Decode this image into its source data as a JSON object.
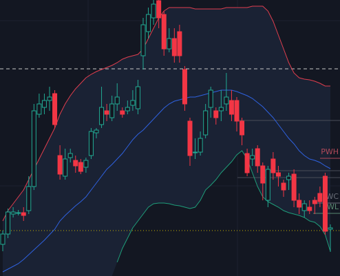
{
  "chart_data": {
    "type": "candlestick",
    "ylim": [
      0,
      401
    ],
    "up_color": "#22ab94",
    "down_color": "#f23645",
    "candles": [
      {
        "open": 46,
        "high": 66,
        "low": 36,
        "close": 61
      },
      {
        "open": 61,
        "high": 98,
        "low": 55,
        "close": 93
      },
      {
        "open": 90,
        "high": 100,
        "low": 85,
        "close": 93
      },
      {
        "open": 92,
        "high": 96,
        "low": 88,
        "close": 92
      },
      {
        "open": 92,
        "high": 100,
        "low": 80,
        "close": 88
      },
      {
        "open": 95,
        "high": 145,
        "low": 90,
        "close": 130
      },
      {
        "open": 130,
        "high": 250,
        "low": 125,
        "close": 240
      },
      {
        "open": 235,
        "high": 265,
        "low": 230,
        "close": 250
      },
      {
        "open": 245,
        "high": 265,
        "low": 235,
        "close": 255
      },
      {
        "open": 255,
        "high": 275,
        "low": 240,
        "close": 260
      },
      {
        "open": 265,
        "high": 270,
        "low": 215,
        "close": 220
      },
      {
        "open": 175,
        "high": 190,
        "low": 140,
        "close": 148
      },
      {
        "open": 145,
        "high": 185,
        "low": 140,
        "close": 170
      },
      {
        "open": 172,
        "high": 185,
        "low": 165,
        "close": 178
      },
      {
        "open": 168,
        "high": 175,
        "low": 150,
        "close": 160
      },
      {
        "open": 165,
        "high": 170,
        "low": 148,
        "close": 152
      },
      {
        "open": 158,
        "high": 172,
        "low": 150,
        "close": 168
      },
      {
        "open": 175,
        "high": 215,
        "low": 170,
        "close": 210
      },
      {
        "open": 208,
        "high": 215,
        "low": 200,
        "close": 212
      },
      {
        "open": 220,
        "high": 275,
        "low": 215,
        "close": 245
      },
      {
        "open": 240,
        "high": 250,
        "low": 225,
        "close": 235
      },
      {
        "open": 230,
        "high": 262,
        "low": 225,
        "close": 250
      },
      {
        "open": 250,
        "high": 280,
        "low": 240,
        "close": 260
      },
      {
        "open": 240,
        "high": 245,
        "low": 230,
        "close": 235
      },
      {
        "open": 240,
        "high": 255,
        "low": 235,
        "close": 245
      },
      {
        "open": 248,
        "high": 270,
        "low": 240,
        "close": 255
      },
      {
        "open": 243,
        "high": 285,
        "low": 235,
        "close": 275
      },
      {
        "open": 320,
        "high": 375,
        "low": 300,
        "close": 365
      },
      {
        "open": 355,
        "high": 390,
        "low": 345,
        "close": 380
      },
      {
        "open": 375,
        "high": 401,
        "low": 365,
        "close": 395
      },
      {
        "open": 400,
        "high": 401,
        "low": 360,
        "close": 375
      },
      {
        "open": 380,
        "high": 385,
        "low": 320,
        "close": 330
      },
      {
        "open": 330,
        "high": 360,
        "low": 325,
        "close": 345
      },
      {
        "open": 345,
        "high": 360,
        "low": 310,
        "close": 320
      },
      {
        "open": 355,
        "high": 365,
        "low": 310,
        "close": 320
      },
      {
        "open": 300,
        "high": 305,
        "low": 240,
        "close": 250
      },
      {
        "open": 225,
        "high": 230,
        "low": 160,
        "close": 175
      },
      {
        "open": 180,
        "high": 200,
        "low": 170,
        "close": 180
      },
      {
        "open": 180,
        "high": 210,
        "low": 175,
        "close": 200
      },
      {
        "open": 205,
        "high": 250,
        "low": 200,
        "close": 240
      },
      {
        "open": 245,
        "high": 275,
        "low": 230,
        "close": 270
      },
      {
        "open": 240,
        "high": 245,
        "low": 220,
        "close": 230
      },
      {
        "open": 240,
        "high": 270,
        "low": 225,
        "close": 245
      },
      {
        "open": 250,
        "high": 295,
        "low": 240,
        "close": 260
      },
      {
        "open": 255,
        "high": 270,
        "low": 225,
        "close": 235
      },
      {
        "open": 255,
        "high": 260,
        "low": 210,
        "close": 225
      },
      {
        "open": 225,
        "high": 230,
        "low": 190,
        "close": 205
      },
      {
        "open": 178,
        "high": 185,
        "low": 145,
        "close": 150
      },
      {
        "open": 170,
        "high": 185,
        "low": 160,
        "close": 175
      },
      {
        "open": 185,
        "high": 190,
        "low": 150,
        "close": 160
      },
      {
        "open": 160,
        "high": 165,
        "low": 110,
        "close": 135
      },
      {
        "open": 110,
        "high": 160,
        "low": 100,
        "close": 155
      },
      {
        "open": 170,
        "high": 180,
        "low": 140,
        "close": 150
      },
      {
        "open": 150,
        "high": 160,
        "low": 130,
        "close": 145
      },
      {
        "open": 135,
        "high": 140,
        "low": 115,
        "close": 125
      },
      {
        "open": 140,
        "high": 150,
        "low": 125,
        "close": 145
      },
      {
        "open": 148,
        "high": 155,
        "low": 100,
        "close": 110
      },
      {
        "open": 110,
        "high": 120,
        "low": 90,
        "close": 100
      },
      {
        "open": 95,
        "high": 110,
        "low": 85,
        "close": 105
      },
      {
        "open": 100,
        "high": 110,
        "low": 90,
        "close": 95
      },
      {
        "open": 110,
        "high": 115,
        "low": 90,
        "close": 105
      },
      {
        "open": 120,
        "high": 130,
        "low": 100,
        "close": 108
      },
      {
        "open": 145,
        "high": 150,
        "low": 60,
        "close": 65
      },
      {
        "open": 68,
        "high": 75,
        "low": 35,
        "close": 70
      }
    ],
    "bands": [
      {
        "color": "#e03e4e",
        "values": [
          80,
          95,
          105,
          115,
          125,
          140,
          155,
          170,
          185,
          200,
          215,
          235,
          250,
          262,
          272,
          280,
          288,
          293,
          297,
          300,
          303,
          306,
          310,
          315,
          318,
          320,
          322,
          330,
          345,
          360,
          375,
          385,
          390,
          390,
          390,
          390,
          390,
          388,
          388,
          388,
          388,
          388,
          388,
          390,
          390,
          390,
          390,
          390,
          392,
          392,
          392,
          385,
          370,
          350,
          330,
          310,
          295,
          288,
          286,
          285,
          283,
          280,
          276,
          276
        ]
      },
      {
        "color": "#2f62e0",
        "values": [
          6,
          10,
          14,
          18,
          24,
          31,
          38,
          45,
          52,
          60,
          68,
          80,
          88,
          95,
          102,
          108,
          115,
          125,
          135,
          145,
          155,
          162,
          170,
          178,
          188,
          198,
          206,
          212,
          220,
          228,
          236,
          244,
          250,
          254,
          256,
          258,
          260,
          260,
          262,
          264,
          266,
          268,
          270,
          270,
          270,
          268,
          265,
          262,
          258,
          252,
          246,
          238,
          230,
          220,
          210,
          200,
          192,
          182,
          175,
          170,
          168,
          165,
          160,
          156
        ]
      },
      {
        "color": "#1f9e7a",
        "values": [
          null,
          null,
          null,
          null,
          null,
          null,
          null,
          null,
          null,
          null,
          null,
          null,
          null,
          null,
          null,
          null,
          null,
          null,
          null,
          null,
          null,
          null,
          20,
          40,
          55,
          70,
          80,
          90,
          100,
          105,
          106,
          106,
          105,
          103,
          102,
          100,
          98,
          100,
          110,
          125,
          132,
          140,
          150,
          158,
          166,
          176,
          182,
          170,
          150,
          130,
          115,
          108,
          104,
          100,
          95,
          92,
          90,
          88,
          85,
          80,
          78,
          72,
          60,
          36
        ]
      }
    ],
    "levels": [
      {
        "value": 301,
        "color": "#c8c8c8",
        "style": "dashed"
      },
      {
        "value": 66,
        "color": "#c8b400",
        "style": "dotted"
      },
      {
        "value": 226,
        "color": "#4a4e58",
        "style": "solid"
      },
      {
        "value": 153,
        "color": "#4a4e58",
        "style": "solid"
      },
      {
        "value": 143,
        "color": "#4a4e58",
        "style": "solid"
      },
      {
        "value": 171,
        "color": "#b24a5a",
        "style": "solid",
        "label": "PWH"
      },
      {
        "value": 106,
        "color": "#6a6e78",
        "style": "solid",
        "label": "WC"
      },
      {
        "value": 91,
        "color": "#5a8a72",
        "style": "solid",
        "label": "WL"
      }
    ]
  }
}
